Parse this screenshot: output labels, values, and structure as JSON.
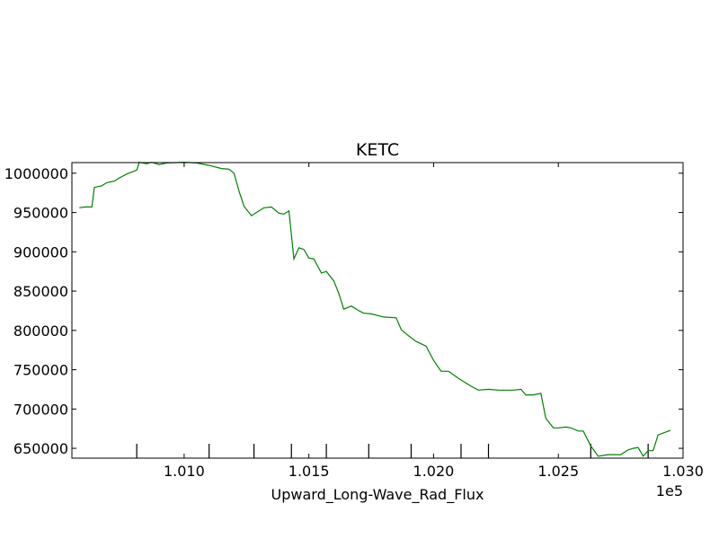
{
  "chart_data": {
    "type": "line",
    "title": "KETC",
    "xlabel": "Upward_Long-Wave_Rad_Flux",
    "ylabel": "",
    "x_offset_label": "1e5",
    "xlim": [
      1.0055,
      1.03
    ],
    "ylim": [
      637500,
      1013500
    ],
    "x_ticks": [
      "1.010",
      "1.015",
      "1.020",
      "1.025",
      "1.030"
    ],
    "x_tick_values": [
      1.01,
      1.015,
      1.02,
      1.025,
      1.03
    ],
    "y_ticks": [
      "650000",
      "700000",
      "750000",
      "800000",
      "850000",
      "900000",
      "950000",
      "1000000"
    ],
    "y_tick_values": [
      650000,
      700000,
      750000,
      800000,
      850000,
      900000,
      950000,
      1000000
    ],
    "rug_x": [
      1.0081,
      1.011,
      1.0128,
      1.0143,
      1.0157,
      1.0174,
      1.0191,
      1.0211,
      1.0222,
      1.0263,
      1.0286
    ],
    "series": [
      {
        "color": "#008000",
        "x": [
          1.0058,
          1.006,
          1.0063,
          1.0064,
          1.0067,
          1.0069,
          1.0072,
          1.0074,
          1.0077,
          1.0081,
          1.0082,
          1.0085,
          1.0087,
          1.009,
          1.0093,
          1.01,
          1.0105,
          1.011,
          1.0115,
          1.0118,
          1.012,
          1.0122,
          1.0124,
          1.0127,
          1.013,
          1.0132,
          1.0135,
          1.0138,
          1.014,
          1.0142,
          1.0144,
          1.0146,
          1.0148,
          1.015,
          1.0152,
          1.0155,
          1.0157,
          1.016,
          1.0162,
          1.0164,
          1.0167,
          1.017,
          1.0172,
          1.0175,
          1.018,
          1.0185,
          1.0187,
          1.019,
          1.0193,
          1.0197,
          1.02,
          1.0203,
          1.0206,
          1.021,
          1.0215,
          1.0218,
          1.0222,
          1.0226,
          1.023,
          1.0232,
          1.0235,
          1.0237,
          1.024,
          1.0243,
          1.0245,
          1.0248,
          1.025,
          1.0253,
          1.0255,
          1.0258,
          1.026,
          1.0263,
          1.0266,
          1.027,
          1.0272,
          1.0275,
          1.0278,
          1.028,
          1.0282,
          1.0284,
          1.0286,
          1.0288,
          1.029,
          1.0295
        ],
        "y": [
          956000,
          957000,
          957000,
          982000,
          984000,
          988000,
          990000,
          994000,
          999000,
          1004000,
          1014000,
          1012000,
          1014000,
          1011000,
          1013000,
          1014000,
          1013000,
          1010000,
          1006000,
          1005000,
          1000000,
          977000,
          958000,
          946000,
          952000,
          956000,
          957000,
          949000,
          948000,
          952000,
          891000,
          905000,
          903000,
          892000,
          891000,
          873000,
          875000,
          863000,
          847000,
          827000,
          831000,
          825000,
          822000,
          821000,
          817000,
          816000,
          801000,
          793000,
          786000,
          780000,
          762000,
          748000,
          748000,
          739000,
          729000,
          724000,
          725000,
          724000,
          724000,
          724000,
          725000,
          718000,
          718000,
          720000,
          688000,
          676000,
          676000,
          677000,
          676000,
          672000,
          672000,
          653000,
          640000,
          642000,
          642000,
          642000,
          648000,
          650000,
          651000,
          640000,
          647000,
          647000,
          667000,
          673000
        ]
      }
    ]
  }
}
